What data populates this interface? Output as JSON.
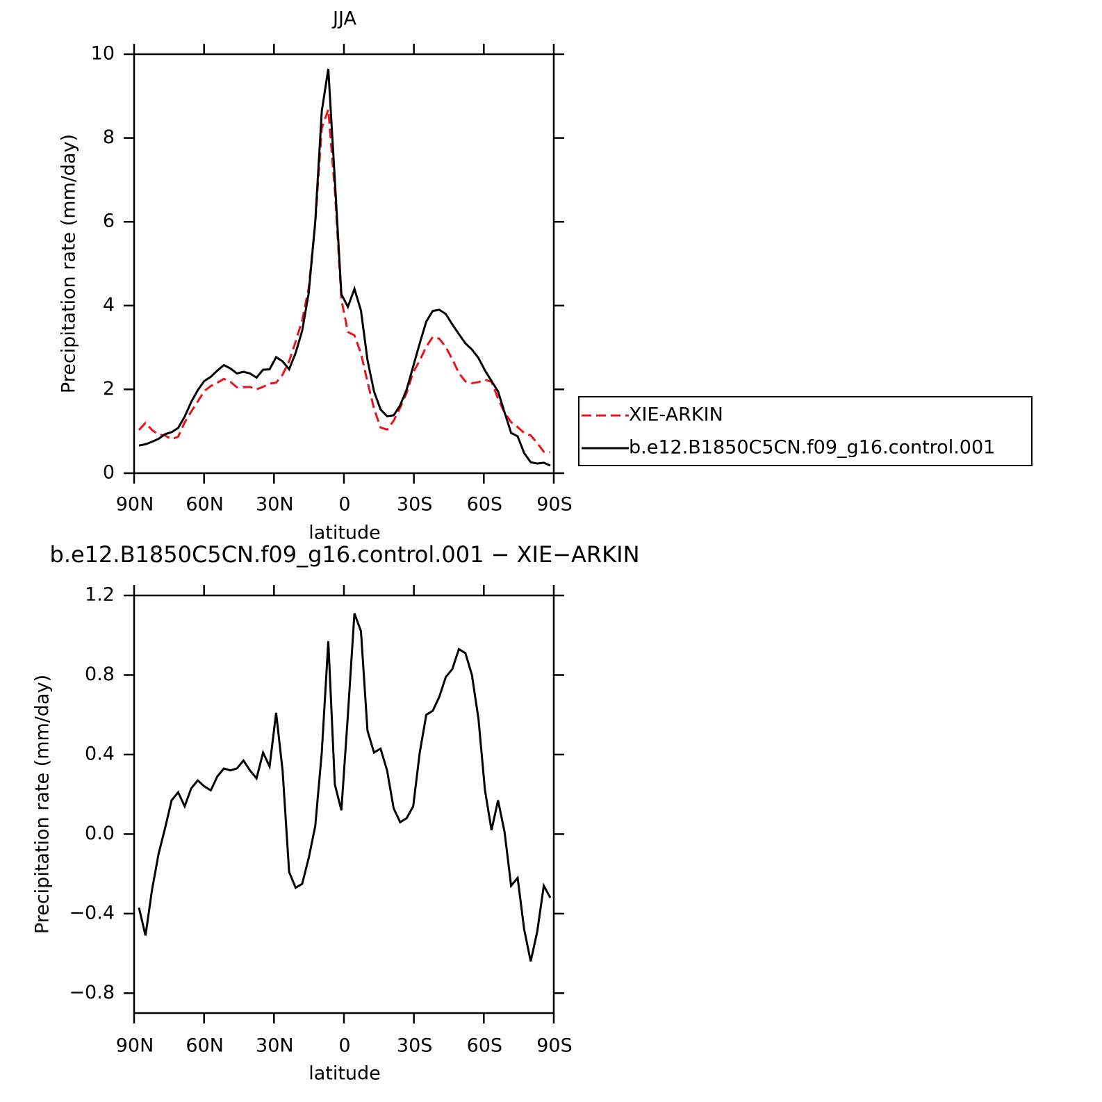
{
  "chart_data": [
    {
      "type": "line",
      "title": "JJA",
      "xlabel": "latitude",
      "ylabel": "Precipitation rate (mm/day)",
      "x": [
        87.9,
        85.1,
        82.3,
        79.5,
        76.7,
        73.9,
        71.1,
        68.3,
        65.5,
        62.7,
        59.9,
        57.1,
        54.3,
        51.5,
        48.7,
        45.9,
        43.1,
        40.3,
        37.5,
        34.7,
        31.9,
        29.1,
        26.3,
        23.5,
        20.7,
        17.9,
        15.1,
        12.3,
        9.5,
        6.7,
        3.9,
        1.1,
        -1.7,
        -4.5,
        -7.3,
        -10.1,
        -12.9,
        -15.7,
        -18.5,
        -21.3,
        -24.1,
        -26.9,
        -29.7,
        -32.5,
        -35.3,
        -38.1,
        -40.9,
        -43.7,
        -46.5,
        -49.3,
        -52.1,
        -54.9,
        -57.7,
        -60.5,
        -63.3,
        -66.1,
        -68.9,
        -71.7,
        -74.5,
        -77.3,
        -80.1,
        -82.9,
        -85.7,
        -88.5
      ],
      "series": [
        {
          "name": "XIE-ARKIN",
          "color": "#e8141a",
          "style": "dashed",
          "values": [
            1.03,
            1.2,
            1.03,
            0.92,
            0.9,
            0.81,
            0.87,
            1.21,
            1.47,
            1.71,
            1.96,
            2.08,
            2.16,
            2.25,
            2.18,
            2.05,
            2.05,
            2.06,
            2.0,
            2.06,
            2.14,
            2.16,
            2.35,
            2.67,
            3.14,
            3.65,
            4.42,
            5.96,
            8.23,
            8.68,
            6.75,
            4.15,
            3.37,
            3.29,
            2.86,
            2.18,
            1.54,
            1.09,
            1.04,
            1.25,
            1.56,
            1.92,
            2.41,
            2.69,
            3.02,
            3.25,
            3.21,
            3.01,
            2.72,
            2.39,
            2.19,
            2.15,
            2.17,
            2.23,
            2.18,
            1.78,
            1.44,
            1.22,
            1.1,
            0.96,
            0.9,
            0.72,
            0.51,
            0.5
          ]
        },
        {
          "name": "b.e12.B1850C5CN.f09_g16.control.001",
          "color": "#000000",
          "style": "solid",
          "values": [
            0.66,
            0.69,
            0.75,
            0.82,
            0.93,
            0.98,
            1.08,
            1.35,
            1.7,
            1.98,
            2.2,
            2.3,
            2.45,
            2.58,
            2.5,
            2.38,
            2.42,
            2.38,
            2.28,
            2.47,
            2.48,
            2.77,
            2.67,
            2.48,
            2.87,
            3.4,
            4.3,
            6.0,
            8.64,
            9.65,
            7.0,
            4.27,
            3.97,
            4.4,
            3.88,
            2.7,
            1.95,
            1.52,
            1.36,
            1.38,
            1.62,
            2.0,
            2.55,
            3.1,
            3.62,
            3.87,
            3.9,
            3.8,
            3.55,
            3.32,
            3.1,
            2.95,
            2.75,
            2.45,
            2.2,
            1.95,
            1.45,
            0.96,
            0.88,
            0.48,
            0.26,
            0.23,
            0.25,
            0.18
          ]
        }
      ],
      "xlim": [
        90,
        -90
      ],
      "xticks": [
        {
          "value": 90,
          "label": "90N"
        },
        {
          "value": 60,
          "label": "60N"
        },
        {
          "value": 30,
          "label": "30N"
        },
        0,
        {
          "value": -30,
          "label": "30S"
        },
        {
          "value": -60,
          "label": "60S"
        },
        {
          "value": -90,
          "label": "90S"
        }
      ],
      "ylim": [
        0,
        10
      ],
      "yticks": [
        0,
        2,
        4,
        6,
        8,
        10
      ],
      "legend": "right",
      "grid": false
    },
    {
      "type": "line",
      "title": "b.e12.B1850C5CN.f09_g16.control.001 − XIE−ARKIN",
      "xlabel": "latitude",
      "ylabel": "Precipitation rate (mm/day)",
      "x": [
        87.9,
        85.1,
        82.3,
        79.5,
        76.7,
        73.9,
        71.1,
        68.3,
        65.5,
        62.7,
        59.9,
        57.1,
        54.3,
        51.5,
        48.7,
        45.9,
        43.1,
        40.3,
        37.5,
        34.7,
        31.9,
        29.1,
        26.3,
        23.5,
        20.7,
        17.9,
        15.1,
        12.3,
        9.5,
        6.7,
        3.9,
        1.1,
        -1.7,
        -4.5,
        -7.3,
        -10.1,
        -12.9,
        -15.7,
        -18.5,
        -21.3,
        -24.1,
        -26.9,
        -29.7,
        -32.5,
        -35.3,
        -38.1,
        -40.9,
        -43.7,
        -46.5,
        -49.3,
        -52.1,
        -54.9,
        -57.7,
        -60.5,
        -63.3,
        -66.1,
        -68.9,
        -71.7,
        -74.5,
        -77.3,
        -80.1,
        -82.9,
        -85.7,
        -88.5
      ],
      "color": "#000000",
      "values": [
        -0.37,
        -0.51,
        -0.28,
        -0.1,
        0.03,
        0.17,
        0.21,
        0.14,
        0.23,
        0.27,
        0.24,
        0.22,
        0.29,
        0.33,
        0.32,
        0.33,
        0.37,
        0.32,
        0.28,
        0.41,
        0.34,
        0.61,
        0.32,
        -0.19,
        -0.27,
        -0.25,
        -0.12,
        0.04,
        0.41,
        0.97,
        0.25,
        0.12,
        0.6,
        1.11,
        1.02,
        0.52,
        0.41,
        0.43,
        0.32,
        0.13,
        0.06,
        0.08,
        0.14,
        0.41,
        0.6,
        0.62,
        0.69,
        0.79,
        0.83,
        0.93,
        0.91,
        0.8,
        0.58,
        0.22,
        0.02,
        0.17,
        0.01,
        -0.26,
        -0.22,
        -0.48,
        -0.64,
        -0.49,
        -0.26,
        -0.32
      ],
      "xlim": [
        90,
        -90
      ],
      "xticks": [
        {
          "value": 90,
          "label": "90N"
        },
        {
          "value": 60,
          "label": "60N"
        },
        {
          "value": 30,
          "label": "30N"
        },
        0,
        {
          "value": -30,
          "label": "30S"
        },
        {
          "value": -60,
          "label": "60S"
        },
        {
          "value": -90,
          "label": "90S"
        }
      ],
      "ylim": [
        -0.9,
        1.2
      ],
      "yticks": [
        {
          "value": -0.8,
          "label": "−0.8"
        },
        {
          "value": -0.4,
          "label": "−0.4"
        },
        {
          "value": 0,
          "label": "0.0"
        },
        0.4,
        0.8,
        1.2
      ],
      "grid": false
    }
  ]
}
